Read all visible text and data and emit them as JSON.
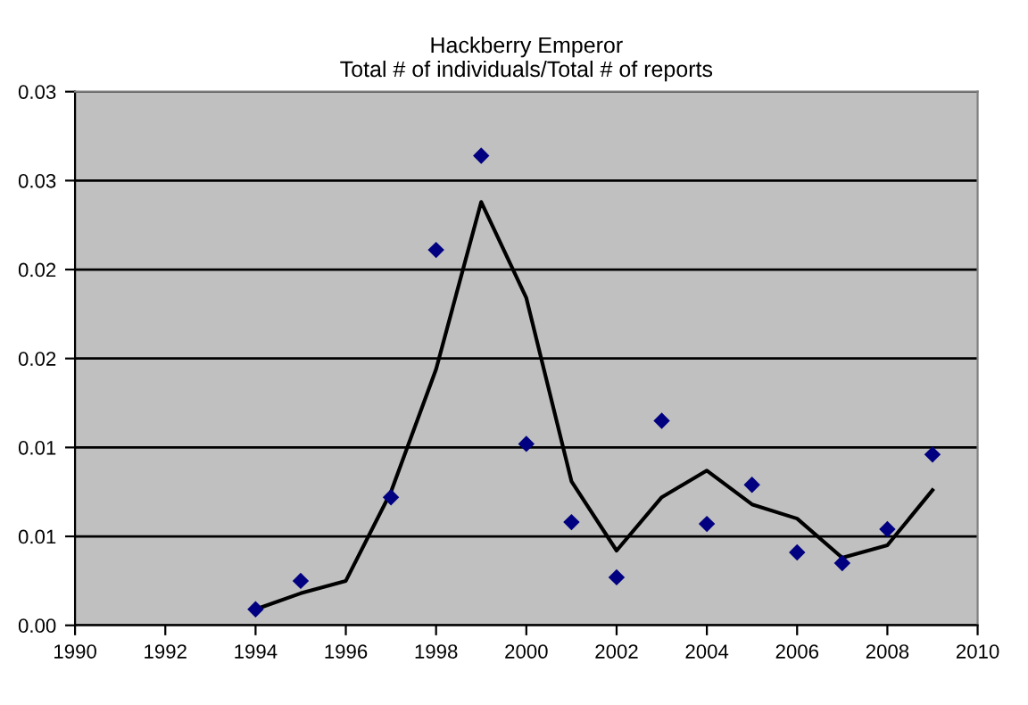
{
  "chart_data": {
    "type": "scatter",
    "title": "Hackberry Emperor\nTotal # of individuals/Total # of reports",
    "series": [
      {
        "color": "#000080",
        "marker": "diamond",
        "x": [
          1994,
          1995,
          1997,
          1998,
          1999,
          2000,
          2001,
          2002,
          2003,
          2004,
          2005,
          2006,
          2007,
          2008,
          2009
        ],
        "values": [
          0.0009,
          0.0025,
          0.0072,
          0.0211,
          0.0264,
          0.0102,
          0.0058,
          0.0027,
          0.0115,
          0.0057,
          0.0079,
          0.0041,
          0.0035,
          0.0054,
          0.0096
        ]
      },
      {
        "type": "line",
        "color": "#000000",
        "marker": "none",
        "x": [
          1994,
          1995,
          1996,
          1997,
          1998,
          1999,
          2000,
          2001,
          2002,
          2003,
          2004,
          2005,
          2006,
          2007,
          2008,
          2009
        ],
        "values": [
          0.0009,
          0.0018,
          0.0025,
          0.0075,
          0.0144,
          0.0238,
          0.0184,
          0.0081,
          0.0042,
          0.0072,
          0.0087,
          0.0068,
          0.006,
          0.0038,
          0.0045,
          0.0076
        ]
      }
    ],
    "xlim": [
      1990,
      2010
    ],
    "xticks": [
      1990,
      1992,
      1994,
      1996,
      1998,
      2000,
      2002,
      2004,
      2006,
      2008,
      2010
    ],
    "ylim": [
      0,
      0.03
    ],
    "yticks": [
      {
        "value": 0,
        "label": "0.00"
      },
      {
        "value": 0.005,
        "label": "0.01"
      },
      {
        "value": 0.01,
        "label": "0.01"
      },
      {
        "value": 0.015,
        "label": "0.02"
      },
      {
        "value": 0.02,
        "label": "0.02"
      },
      {
        "value": 0.025,
        "label": "0.03"
      },
      {
        "value": 0.03,
        "label": "0.03"
      }
    ],
    "grid": "y",
    "legend": false
  }
}
